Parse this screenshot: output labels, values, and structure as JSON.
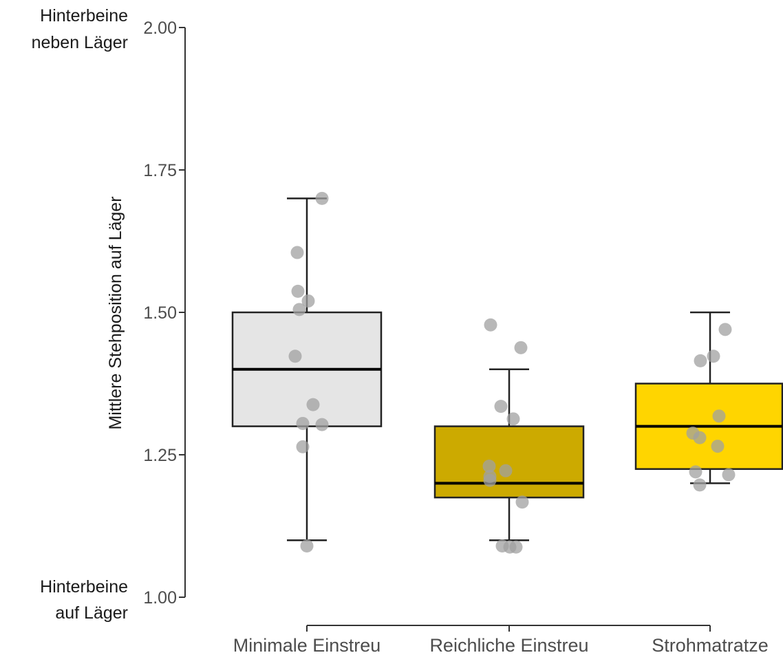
{
  "chart_data": {
    "type": "boxplot",
    "title": "",
    "xlabel": "",
    "ylabel": "Mittlere Stehposition auf Läger",
    "ylim": [
      1.0,
      2.0
    ],
    "y_ticks": [
      {
        "value": 1.0,
        "label": "1.00"
      },
      {
        "value": 1.25,
        "label": "1.25"
      },
      {
        "value": 1.5,
        "label": "1.50"
      },
      {
        "value": 1.75,
        "label": "1.75"
      },
      {
        "value": 2.0,
        "label": "2.00"
      }
    ],
    "y_end_labels": {
      "top": [
        "Hinterbeine",
        "neben Läger"
      ],
      "bottom": [
        "Hinterbeine",
        "auf Läger"
      ]
    },
    "grid": false,
    "legend": "none",
    "categories": [
      "Minimale Einstreu",
      "Reichliche Einstreu",
      "Strohmatratze"
    ],
    "boxes": [
      {
        "category": "Minimale Einstreu",
        "color": "#e5e5e5",
        "whisker_low": 1.1,
        "q1": 1.3,
        "median": 1.4,
        "q3": 1.5,
        "whisker_high": 1.7,
        "points": [
          1.7,
          1.605,
          1.537,
          1.52,
          1.505,
          1.423,
          1.338,
          1.305,
          1.303,
          1.264,
          1.09
        ]
      },
      {
        "category": "Reichliche Einstreu",
        "color": "#ccaa00",
        "whisker_low": 1.1,
        "q1": 1.175,
        "median": 1.2,
        "q3": 1.3,
        "whisker_high": 1.4,
        "points": [
          1.478,
          1.438,
          1.335,
          1.313,
          1.23,
          1.222,
          1.212,
          1.205,
          1.167,
          1.09,
          1.088,
          1.088
        ]
      },
      {
        "category": "Strohmatratze",
        "color": "#ffd500",
        "whisker_low": 1.2,
        "q1": 1.225,
        "median": 1.3,
        "q3": 1.375,
        "whisker_high": 1.5,
        "points": [
          1.47,
          1.423,
          1.415,
          1.318,
          1.288,
          1.28,
          1.265,
          1.22,
          1.215,
          1.197
        ]
      }
    ]
  }
}
